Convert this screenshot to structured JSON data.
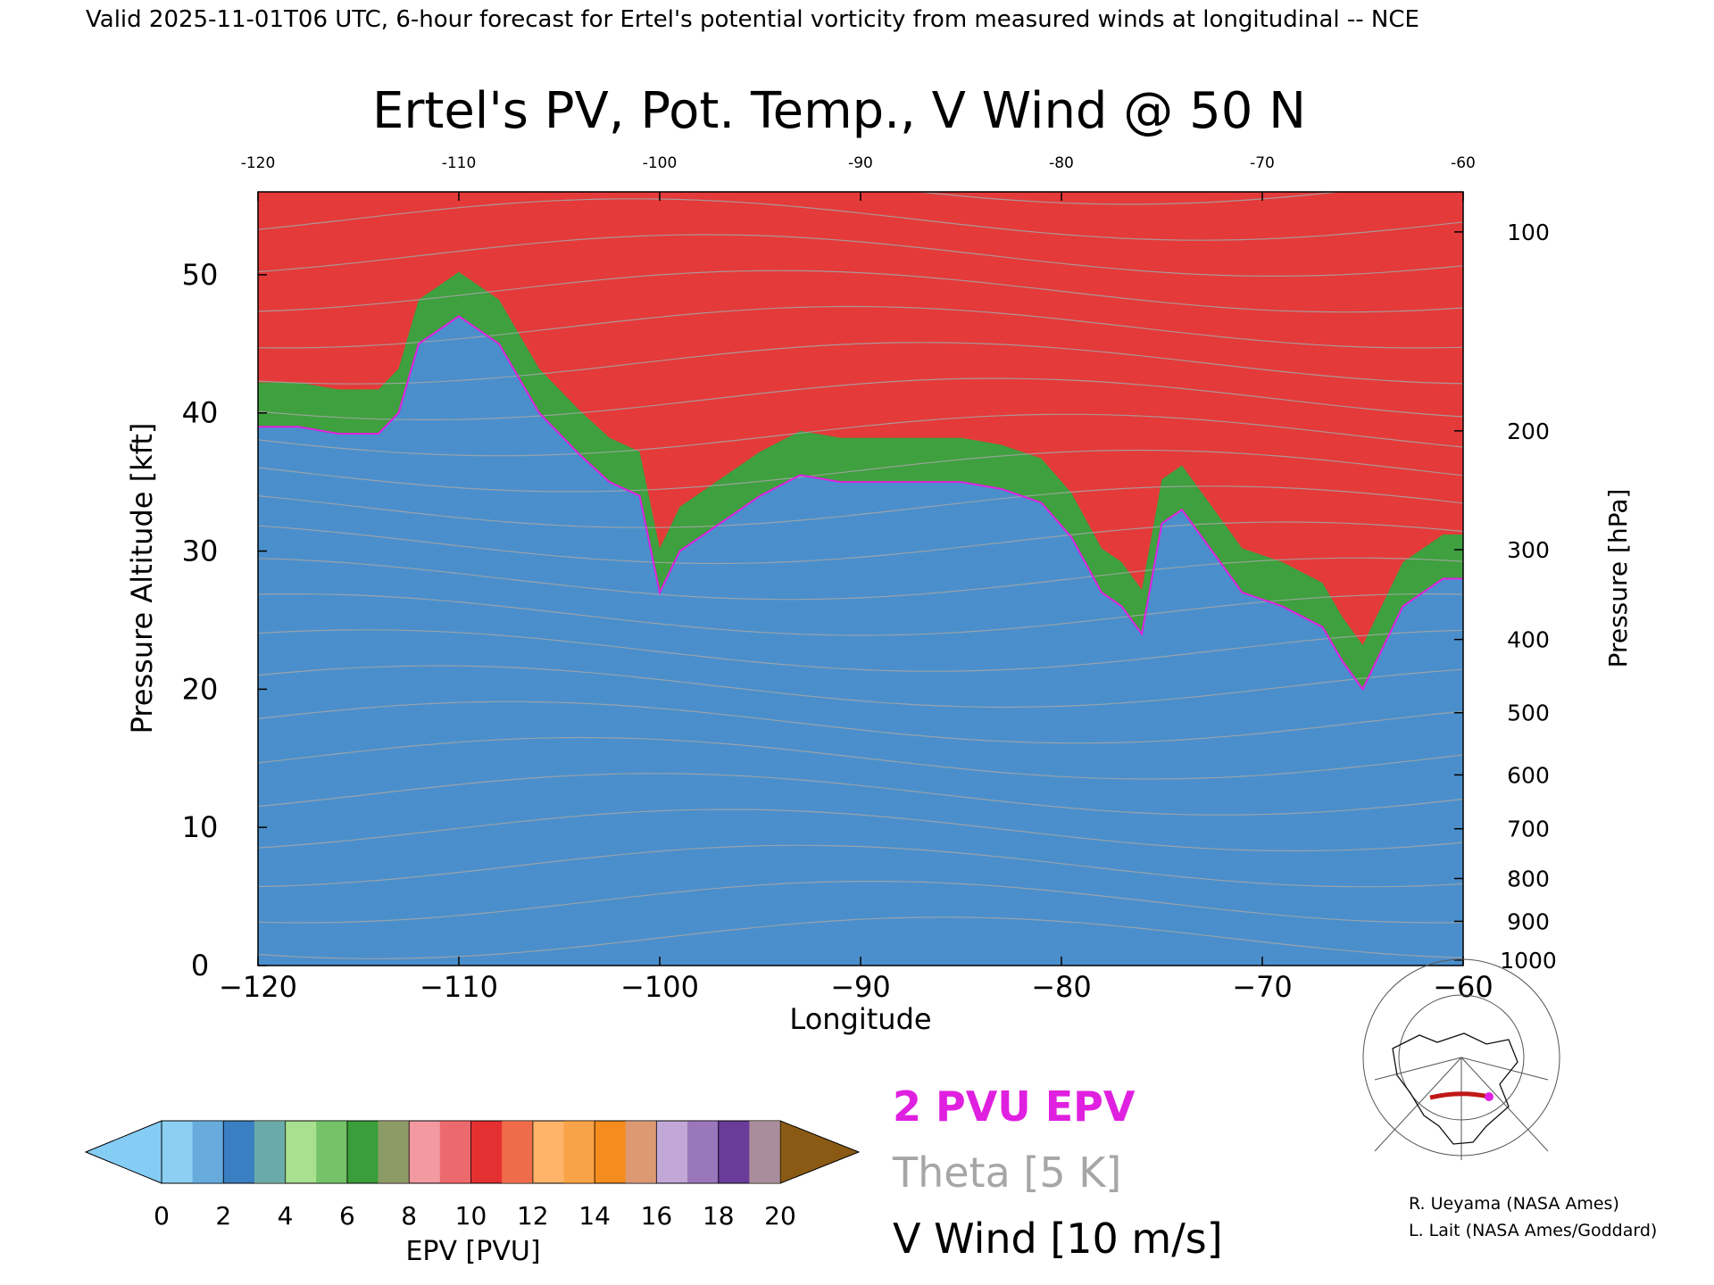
{
  "header": {
    "valid_line": "Valid 2025-11-01T06 UTC, 6-hour forecast for Ertel's potential vorticity from measured winds at longitudinal -- NCE"
  },
  "chart_data": {
    "type": "heatmap",
    "title": "Ertel's PV, Pot. Temp., V Wind @ 50 N",
    "xlabel": "Longitude",
    "ylabel_left": "Pressure Altitude [kft]",
    "ylabel_right": "Pressure [hPa]",
    "xlim": [
      -120,
      -60
    ],
    "ylim_kft": [
      0,
      56
    ],
    "x_ticks": [
      -120,
      -110,
      -100,
      -90,
      -80,
      -70,
      -60
    ],
    "x_tick_labels": [
      "−120",
      "−110",
      "−100",
      "−90",
      "−80",
      "−70",
      "−60"
    ],
    "top_ticks": [
      -120,
      -110,
      -100,
      -90,
      -80,
      -70,
      -60
    ],
    "top_tick_labels": [
      "-120",
      "-110",
      "-100",
      "-90",
      "-80",
      "-70",
      "-60"
    ],
    "y_left_ticks": [
      0,
      10,
      20,
      30,
      40,
      50
    ],
    "y_right_ticks": [
      {
        "label": "1000",
        "kft": 0.4
      },
      {
        "label": "900",
        "kft": 3.2
      },
      {
        "label": "800",
        "kft": 6.3
      },
      {
        "label": "700",
        "kft": 9.9
      },
      {
        "label": "600",
        "kft": 13.8
      },
      {
        "label": "500",
        "kft": 18.3
      },
      {
        "label": "400",
        "kft": 23.6
      },
      {
        "label": "300",
        "kft": 30.1
      },
      {
        "label": "200",
        "kft": 38.7
      },
      {
        "label": "100",
        "kft": 53.1
      }
    ],
    "epv_2pvu_boundary_kft": {
      "lon": [
        -120,
        -118,
        -116,
        -114,
        -113,
        -112,
        -110,
        -108,
        -106,
        -104,
        -102.5,
        -101,
        -100,
        -99,
        -97,
        -95,
        -93,
        -91,
        -89,
        -87,
        -85,
        -83,
        -81,
        -79.5,
        -78,
        -77,
        -76,
        -75,
        -74,
        -73,
        -71,
        -69,
        -67,
        -66,
        -65,
        -64,
        -63,
        -62,
        -61,
        -60
      ],
      "kft": [
        39,
        39,
        38.5,
        38.5,
        40,
        45,
        47,
        45,
        40,
        37,
        35,
        34,
        27,
        30,
        32,
        34,
        35.5,
        35,
        35,
        35,
        35,
        34.5,
        33.5,
        31,
        27,
        26,
        24,
        32,
        33,
        31,
        27,
        26,
        24.5,
        22,
        20,
        23,
        26,
        27,
        28,
        28
      ]
    },
    "colorbar": {
      "label": "EPV [PVU]",
      "ticks": [
        "0",
        "2",
        "4",
        "6",
        "8",
        "10",
        "12",
        "14",
        "16",
        "18",
        "20"
      ],
      "colors": [
        "#8ccff2",
        "#3a7fc2",
        "#a8e090",
        "#3a9e3a",
        "#f29aa0",
        "#e43030",
        "#ffb46a",
        "#f58c1e",
        "#c2a8d6",
        "#6a3c9a",
        "#f8f0a0"
      ],
      "under_color": "#86cdf6",
      "over_color": "#8a5a14"
    },
    "colors": {
      "low_pv": "#4a8fcc",
      "mid_pv": "#3ea03e",
      "high_pv": "#e43a3a",
      "boundary_2pvu": "#e020e0",
      "theta_contour": "#a6a6a6",
      "vwind_contour": "#000000"
    }
  },
  "legend": {
    "epv_label": "2 PVU EPV",
    "theta_label": "Theta [5 K]",
    "vwind_label": "V Wind [10 m/s]"
  },
  "credits": {
    "line1": "R. Ueyama (NASA Ames)",
    "line2": "L. Lait (NASA Ames/Goddard)"
  }
}
